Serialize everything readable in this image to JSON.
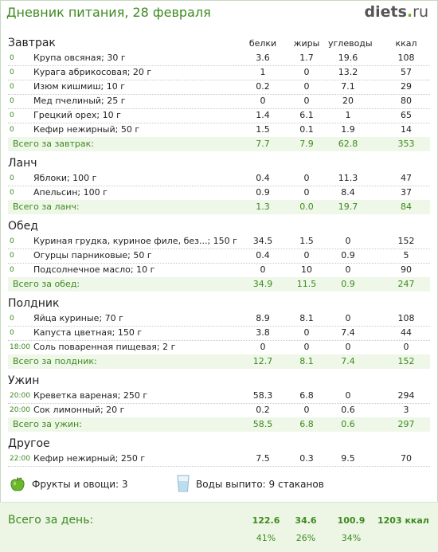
{
  "header": {
    "title": "Дневник питания, 28 февраля",
    "logo_main": "diets",
    "logo_dot": ".",
    "logo_tld": "ru"
  },
  "columns": {
    "protein": "белки",
    "fat": "жиры",
    "carbs": "углеводы",
    "kcal": "ккал"
  },
  "sections": [
    {
      "title": "Завтрак",
      "items": [
        {
          "time": "0",
          "name": "Крупа овсяная; 30 г",
          "p": "3.6",
          "f": "1.7",
          "c": "19.6",
          "k": "108"
        },
        {
          "time": "0",
          "name": "Курага абрикосовая; 20 г",
          "p": "1",
          "f": "0",
          "c": "13.2",
          "k": "57"
        },
        {
          "time": "0",
          "name": "Изюм кишмиш; 10 г",
          "p": "0.2",
          "f": "0",
          "c": "7.1",
          "k": "29"
        },
        {
          "time": "0",
          "name": "Мед пчелиный; 25 г",
          "p": "0",
          "f": "0",
          "c": "20",
          "k": "80"
        },
        {
          "time": "0",
          "name": "Грецкий орех; 10 г",
          "p": "1.4",
          "f": "6.1",
          "c": "1",
          "k": "65"
        },
        {
          "time": "0",
          "name": "Кефир нежирный; 50 г",
          "p": "1.5",
          "f": "0.1",
          "c": "1.9",
          "k": "14"
        }
      ],
      "total": {
        "label": "Всего за завтрак:",
        "p": "7.7",
        "f": "7.9",
        "c": "62.8",
        "k": "353"
      }
    },
    {
      "title": "Ланч",
      "items": [
        {
          "time": "0",
          "name": "Яблоки; 100 г",
          "p": "0.4",
          "f": "0",
          "c": "11.3",
          "k": "47"
        },
        {
          "time": "0",
          "name": "Апельсин; 100 г",
          "p": "0.9",
          "f": "0",
          "c": "8.4",
          "k": "37"
        }
      ],
      "total": {
        "label": "Всего за ланч:",
        "p": "1.3",
        "f": "0.0",
        "c": "19.7",
        "k": "84"
      }
    },
    {
      "title": "Обед",
      "items": [
        {
          "time": "0",
          "name": "Куриная грудка, куриное филе, без...; 150 г",
          "p": "34.5",
          "f": "1.5",
          "c": "0",
          "k": "152"
        },
        {
          "time": "0",
          "name": "Огурцы парниковые; 50 г",
          "p": "0.4",
          "f": "0",
          "c": "0.9",
          "k": "5"
        },
        {
          "time": "0",
          "name": "Подсолнечное масло; 10 г",
          "p": "0",
          "f": "10",
          "c": "0",
          "k": "90"
        }
      ],
      "total": {
        "label": "Всего за обед:",
        "p": "34.9",
        "f": "11.5",
        "c": "0.9",
        "k": "247"
      }
    },
    {
      "title": "Полдник",
      "items": [
        {
          "time": "0",
          "name": "Яйца куриные; 70 г",
          "p": "8.9",
          "f": "8.1",
          "c": "0",
          "k": "108"
        },
        {
          "time": "0",
          "name": "Капуста цветная; 150 г",
          "p": "3.8",
          "f": "0",
          "c": "7.4",
          "k": "44"
        },
        {
          "time": "18:00",
          "name": "Соль поваренная пищевая; 2 г",
          "p": "0",
          "f": "0",
          "c": "0",
          "k": "0"
        }
      ],
      "total": {
        "label": "Всего за полдник:",
        "p": "12.7",
        "f": "8.1",
        "c": "7.4",
        "k": "152"
      }
    },
    {
      "title": "Ужин",
      "items": [
        {
          "time": "20:00",
          "name": "Креветка вареная; 250 г",
          "p": "58.3",
          "f": "6.8",
          "c": "0",
          "k": "294"
        },
        {
          "time": "20:00",
          "name": "Сок лимонный; 20 г",
          "p": "0.2",
          "f": "0",
          "c": "0.6",
          "k": "3"
        }
      ],
      "total": {
        "label": "Всего за ужин:",
        "p": "58.5",
        "f": "6.8",
        "c": "0.6",
        "k": "297"
      }
    },
    {
      "title": "Другое",
      "items": [
        {
          "time": "22:00",
          "name": "Кефир нежирный; 250 г",
          "p": "7.5",
          "f": "0.3",
          "c": "9.5",
          "k": "70"
        }
      ]
    }
  ],
  "extras": {
    "fruit": "Фрукты и овощи: 3",
    "water": "Воды выпито: 9 стаканов"
  },
  "day_total": {
    "label": "Всего за день:",
    "p": "122.6",
    "f": "34.6",
    "c": "100.9",
    "k": "1203 ккал",
    "p_pct": "41%",
    "f_pct": "26%",
    "c_pct": "34%"
  }
}
